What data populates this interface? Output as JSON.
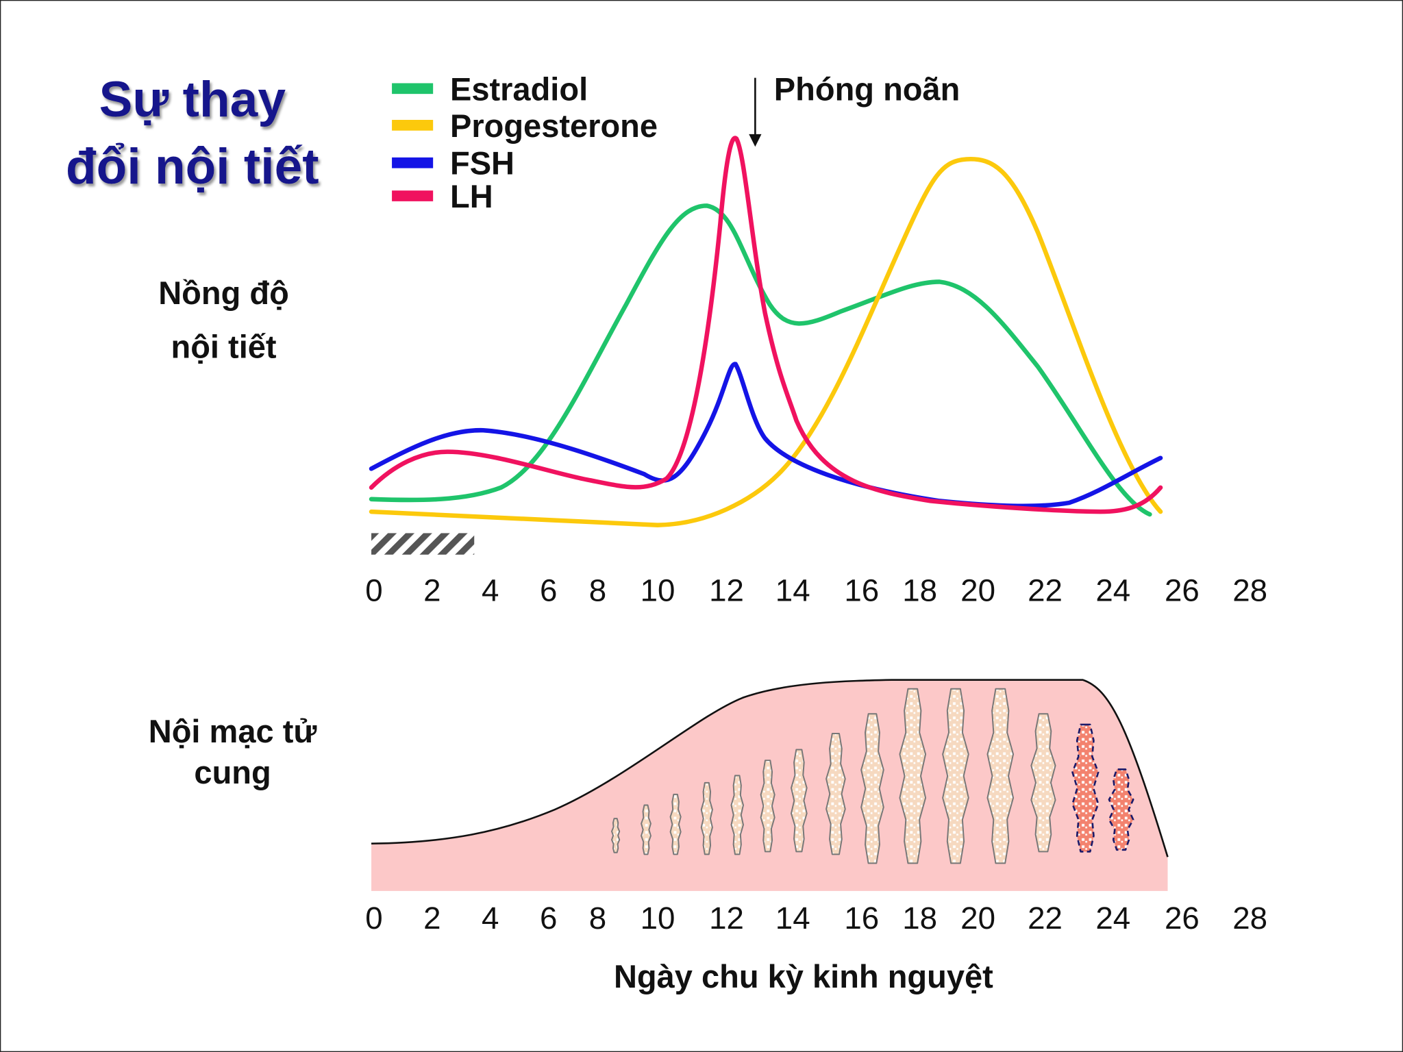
{
  "title": [
    "Sự thay",
    "đổi nội tiết"
  ],
  "legend": [
    {
      "name": "Estradiol",
      "color": "#1fc46b"
    },
    {
      "name": "Progesterone",
      "color": "#fcc90c"
    },
    {
      "name": "FSH",
      "color": "#1414e6"
    },
    {
      "name": "LH",
      "color": "#f0125f"
    }
  ],
  "annotation": "Phóng noãn",
  "hormone_label": [
    "Nồng độ",
    "nội tiết"
  ],
  "endometrium_label": [
    "Nội mạc tử",
    "cung"
  ],
  "hormone_x_ticks": [
    "0",
    "2",
    "4",
    "6",
    "8",
    "10",
    "12",
    "14",
    "16",
    "18",
    "20",
    "22",
    "24",
    "26",
    "28"
  ],
  "endometrium_x_ticks": [
    "0",
    "2",
    "4",
    "6",
    "8",
    "10",
    "12",
    "14",
    "16",
    "18",
    "20",
    "22",
    "24",
    "26",
    "28"
  ],
  "x_axis_label": "Ngày chu kỳ kinh nguyệt"
}
